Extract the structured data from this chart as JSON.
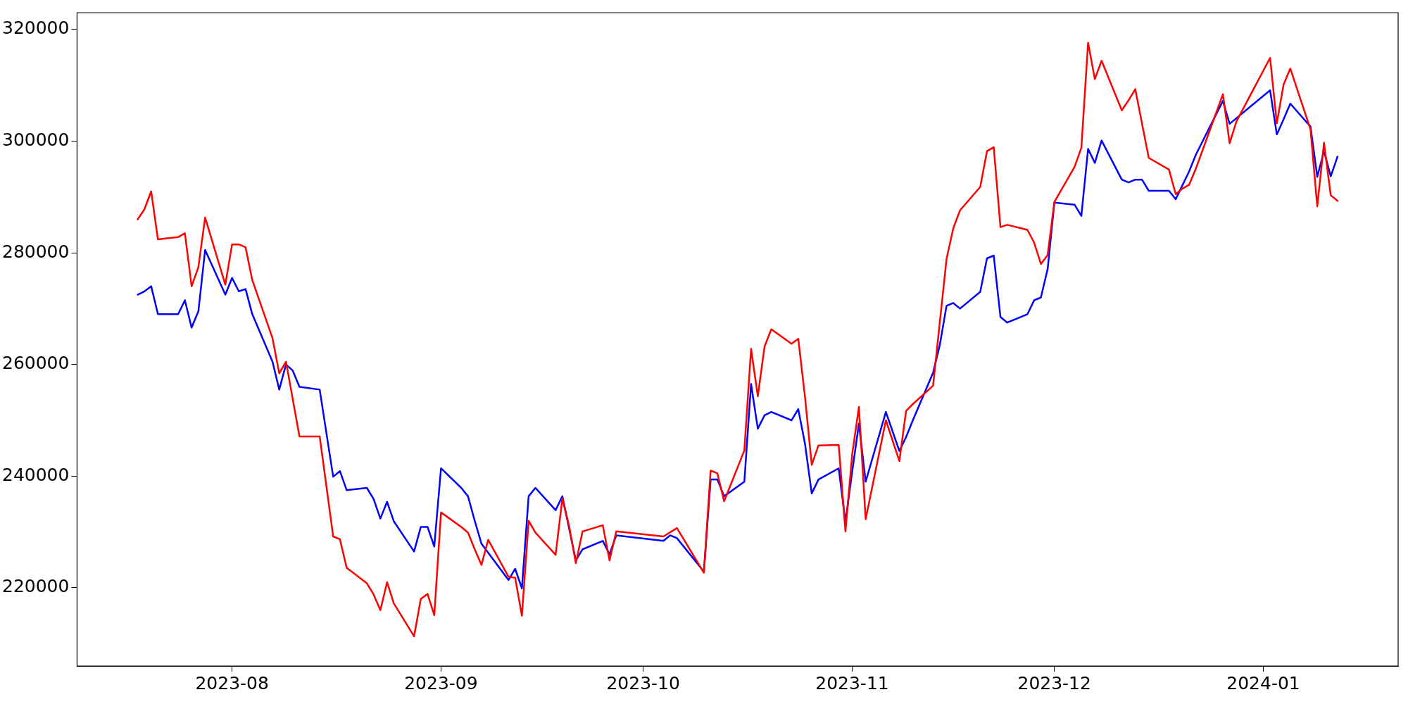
{
  "chart_data": {
    "type": "line",
    "xlim": [
      "2023-07-09",
      "2024-01-21"
    ],
    "ylim": [
      206000,
      323000
    ],
    "xticks": [
      {
        "value": "2023-08-01",
        "label": "2023-08"
      },
      {
        "value": "2023-09-01",
        "label": "2023-09"
      },
      {
        "value": "2023-10-01",
        "label": "2023-10"
      },
      {
        "value": "2023-11-01",
        "label": "2023-11"
      },
      {
        "value": "2023-12-01",
        "label": "2023-12"
      },
      {
        "value": "2024-01-01",
        "label": "2024-01"
      }
    ],
    "yticks": [
      220000,
      240000,
      260000,
      280000,
      300000,
      320000
    ],
    "grid": false,
    "legend": false,
    "marker": "none",
    "line_style": "solid",
    "series": [
      {
        "color": "#ff0000",
        "x": [
          "2023-07-18",
          "2023-07-19",
          "2023-07-20",
          "2023-07-21",
          "2023-07-24",
          "2023-07-25",
          "2023-07-26",
          "2023-07-27",
          "2023-07-28",
          "2023-07-31",
          "2023-08-01",
          "2023-08-02",
          "2023-08-03",
          "2023-08-04",
          "2023-08-07",
          "2023-08-08",
          "2023-08-09",
          "2023-08-11",
          "2023-08-14",
          "2023-08-16",
          "2023-08-17",
          "2023-08-18",
          "2023-08-21",
          "2023-08-22",
          "2023-08-23",
          "2023-08-24",
          "2023-08-25",
          "2023-08-28",
          "2023-08-29",
          "2023-08-30",
          "2023-08-31",
          "2023-09-01",
          "2023-09-04",
          "2023-09-05",
          "2023-09-06",
          "2023-09-07",
          "2023-09-08",
          "2023-09-11",
          "2023-09-12",
          "2023-09-13",
          "2023-09-14",
          "2023-09-15",
          "2023-09-18",
          "2023-09-19",
          "2023-09-20",
          "2023-09-21",
          "2023-09-22",
          "2023-09-25",
          "2023-09-26",
          "2023-09-27",
          "2023-10-04",
          "2023-10-06",
          "2023-10-10",
          "2023-10-11",
          "2023-10-12",
          "2023-10-13",
          "2023-10-16",
          "2023-10-17",
          "2023-10-18",
          "2023-10-19",
          "2023-10-20",
          "2023-10-23",
          "2023-10-24",
          "2023-10-25",
          "2023-10-26",
          "2023-10-27",
          "2023-10-30",
          "2023-10-31",
          "2023-11-01",
          "2023-11-02",
          "2023-11-03",
          "2023-11-06",
          "2023-11-08",
          "2023-11-09",
          "2023-11-10",
          "2023-11-13",
          "2023-11-15",
          "2023-11-16",
          "2023-11-17",
          "2023-11-20",
          "2023-11-21",
          "2023-11-22",
          "2023-11-23",
          "2023-11-24",
          "2023-11-27",
          "2023-11-28",
          "2023-11-29",
          "2023-11-30",
          "2023-12-01",
          "2023-12-04",
          "2023-12-05",
          "2023-12-06",
          "2023-12-07",
          "2023-12-08",
          "2023-12-11",
          "2023-12-12",
          "2023-12-13",
          "2023-12-15",
          "2023-12-18",
          "2023-12-19",
          "2023-12-20",
          "2023-12-21",
          "2023-12-22",
          "2023-12-26",
          "2023-12-27",
          "2023-12-28",
          "2024-01-02",
          "2024-01-03",
          "2024-01-04",
          "2024-01-05",
          "2024-01-08",
          "2024-01-09",
          "2024-01-10",
          "2024-01-11",
          "2024-01-12"
        ],
        "values": [
          286000,
          287800,
          291000,
          282400,
          282800,
          283500,
          274000,
          277400,
          286300,
          274300,
          281500,
          281500,
          281000,
          275100,
          264700,
          258400,
          260500,
          247100,
          247100,
          229200,
          228700,
          223600,
          220800,
          218800,
          216000,
          221000,
          217200,
          211300,
          218000,
          218900,
          215100,
          233500,
          230900,
          229900,
          226900,
          224100,
          228600,
          222000,
          221800,
          215000,
          232000,
          229900,
          225900,
          236000,
          231100,
          224400,
          230100,
          231200,
          224900,
          230100,
          229200,
          230700,
          222700,
          241000,
          240500,
          235500,
          244600,
          262800,
          254300,
          263200,
          266300,
          263700,
          264600,
          254200,
          242000,
          245500,
          245600,
          230100,
          243900,
          252400,
          232300,
          250000,
          242700,
          251700,
          252900,
          256200,
          278900,
          284400,
          287600,
          291800,
          298200,
          298900,
          284600,
          285000,
          284100,
          281800,
          278000,
          279600,
          289100,
          295400,
          298800,
          317600,
          311100,
          314400,
          305500,
          307300,
          309300,
          297000,
          294900,
          290500,
          291500,
          292200,
          295100,
          308400,
          299600,
          303500,
          314900,
          303200,
          310100,
          313000,
          302100,
          288300,
          299700,
          290300,
          289300
        ]
      },
      {
        "color": "#0000ff",
        "x": [
          "2023-07-18",
          "2023-07-19",
          "2023-07-20",
          "2023-07-21",
          "2023-07-24",
          "2023-07-25",
          "2023-07-26",
          "2023-07-27",
          "2023-07-28",
          "2023-07-31",
          "2023-08-01",
          "2023-08-02",
          "2023-08-03",
          "2023-08-04",
          "2023-08-07",
          "2023-08-08",
          "2023-08-09",
          "2023-08-10",
          "2023-08-11",
          "2023-08-14",
          "2023-08-16",
          "2023-08-17",
          "2023-08-18",
          "2023-08-21",
          "2023-08-22",
          "2023-08-23",
          "2023-08-24",
          "2023-08-25",
          "2023-08-28",
          "2023-08-29",
          "2023-08-30",
          "2023-08-31",
          "2023-09-01",
          "2023-09-04",
          "2023-09-05",
          "2023-09-06",
          "2023-09-07",
          "2023-09-11",
          "2023-09-12",
          "2023-09-13",
          "2023-09-14",
          "2023-09-15",
          "2023-09-18",
          "2023-09-19",
          "2023-09-21",
          "2023-09-22",
          "2023-09-25",
          "2023-09-26",
          "2023-09-27",
          "2023-10-04",
          "2023-10-05",
          "2023-10-06",
          "2023-10-10",
          "2023-10-11",
          "2023-10-12",
          "2023-10-13",
          "2023-10-16",
          "2023-10-17",
          "2023-10-18",
          "2023-10-19",
          "2023-10-20",
          "2023-10-23",
          "2023-10-24",
          "2023-10-25",
          "2023-10-26",
          "2023-10-27",
          "2023-10-30",
          "2023-10-31",
          "2023-11-01",
          "2023-11-02",
          "2023-11-03",
          "2023-11-06",
          "2023-11-08",
          "2023-11-09",
          "2023-11-10",
          "2023-11-13",
          "2023-11-14",
          "2023-11-15",
          "2023-11-16",
          "2023-11-17",
          "2023-11-20",
          "2023-11-21",
          "2023-11-22",
          "2023-11-23",
          "2023-11-24",
          "2023-11-27",
          "2023-11-28",
          "2023-11-29",
          "2023-11-30",
          "2023-12-01",
          "2023-12-04",
          "2023-12-05",
          "2023-12-06",
          "2023-12-07",
          "2023-12-08",
          "2023-12-11",
          "2023-12-12",
          "2023-12-13",
          "2023-12-14",
          "2023-12-15",
          "2023-12-18",
          "2023-12-19",
          "2023-12-20",
          "2023-12-21",
          "2023-12-22",
          "2023-12-26",
          "2023-12-27",
          "2024-01-02",
          "2024-01-03",
          "2024-01-04",
          "2024-01-05",
          "2024-01-08",
          "2024-01-09",
          "2024-01-10",
          "2024-01-11",
          "2024-01-12"
        ],
        "values": [
          272500,
          273100,
          274000,
          269000,
          269000,
          271500,
          266600,
          269500,
          280500,
          272500,
          275500,
          273100,
          273500,
          269000,
          260500,
          255500,
          260000,
          258900,
          256000,
          255500,
          239900,
          240900,
          237500,
          237900,
          235900,
          232400,
          235400,
          231900,
          226500,
          230900,
          230900,
          227400,
          241400,
          237900,
          236400,
          232000,
          227900,
          221400,
          223400,
          219900,
          236400,
          237900,
          233900,
          236400,
          224900,
          226900,
          228400,
          226000,
          229400,
          228400,
          229400,
          228900,
          222900,
          239400,
          239400,
          236400,
          239000,
          256500,
          248500,
          250900,
          251500,
          250000,
          252000,
          245800,
          236900,
          239400,
          241400,
          231800,
          240800,
          249400,
          239000,
          251500,
          244500,
          247000,
          250000,
          258500,
          263500,
          270500,
          271000,
          270000,
          273000,
          279000,
          279500,
          268500,
          267500,
          269000,
          271500,
          272000,
          277100,
          289000,
          288600,
          286600,
          298600,
          296100,
          300100,
          293100,
          292600,
          293100,
          293100,
          291100,
          291100,
          289600,
          292100,
          294600,
          297600,
          307200,
          303100,
          309100,
          301200,
          303900,
          306700,
          302600,
          293600,
          298200,
          293700,
          297200
        ]
      }
    ]
  }
}
